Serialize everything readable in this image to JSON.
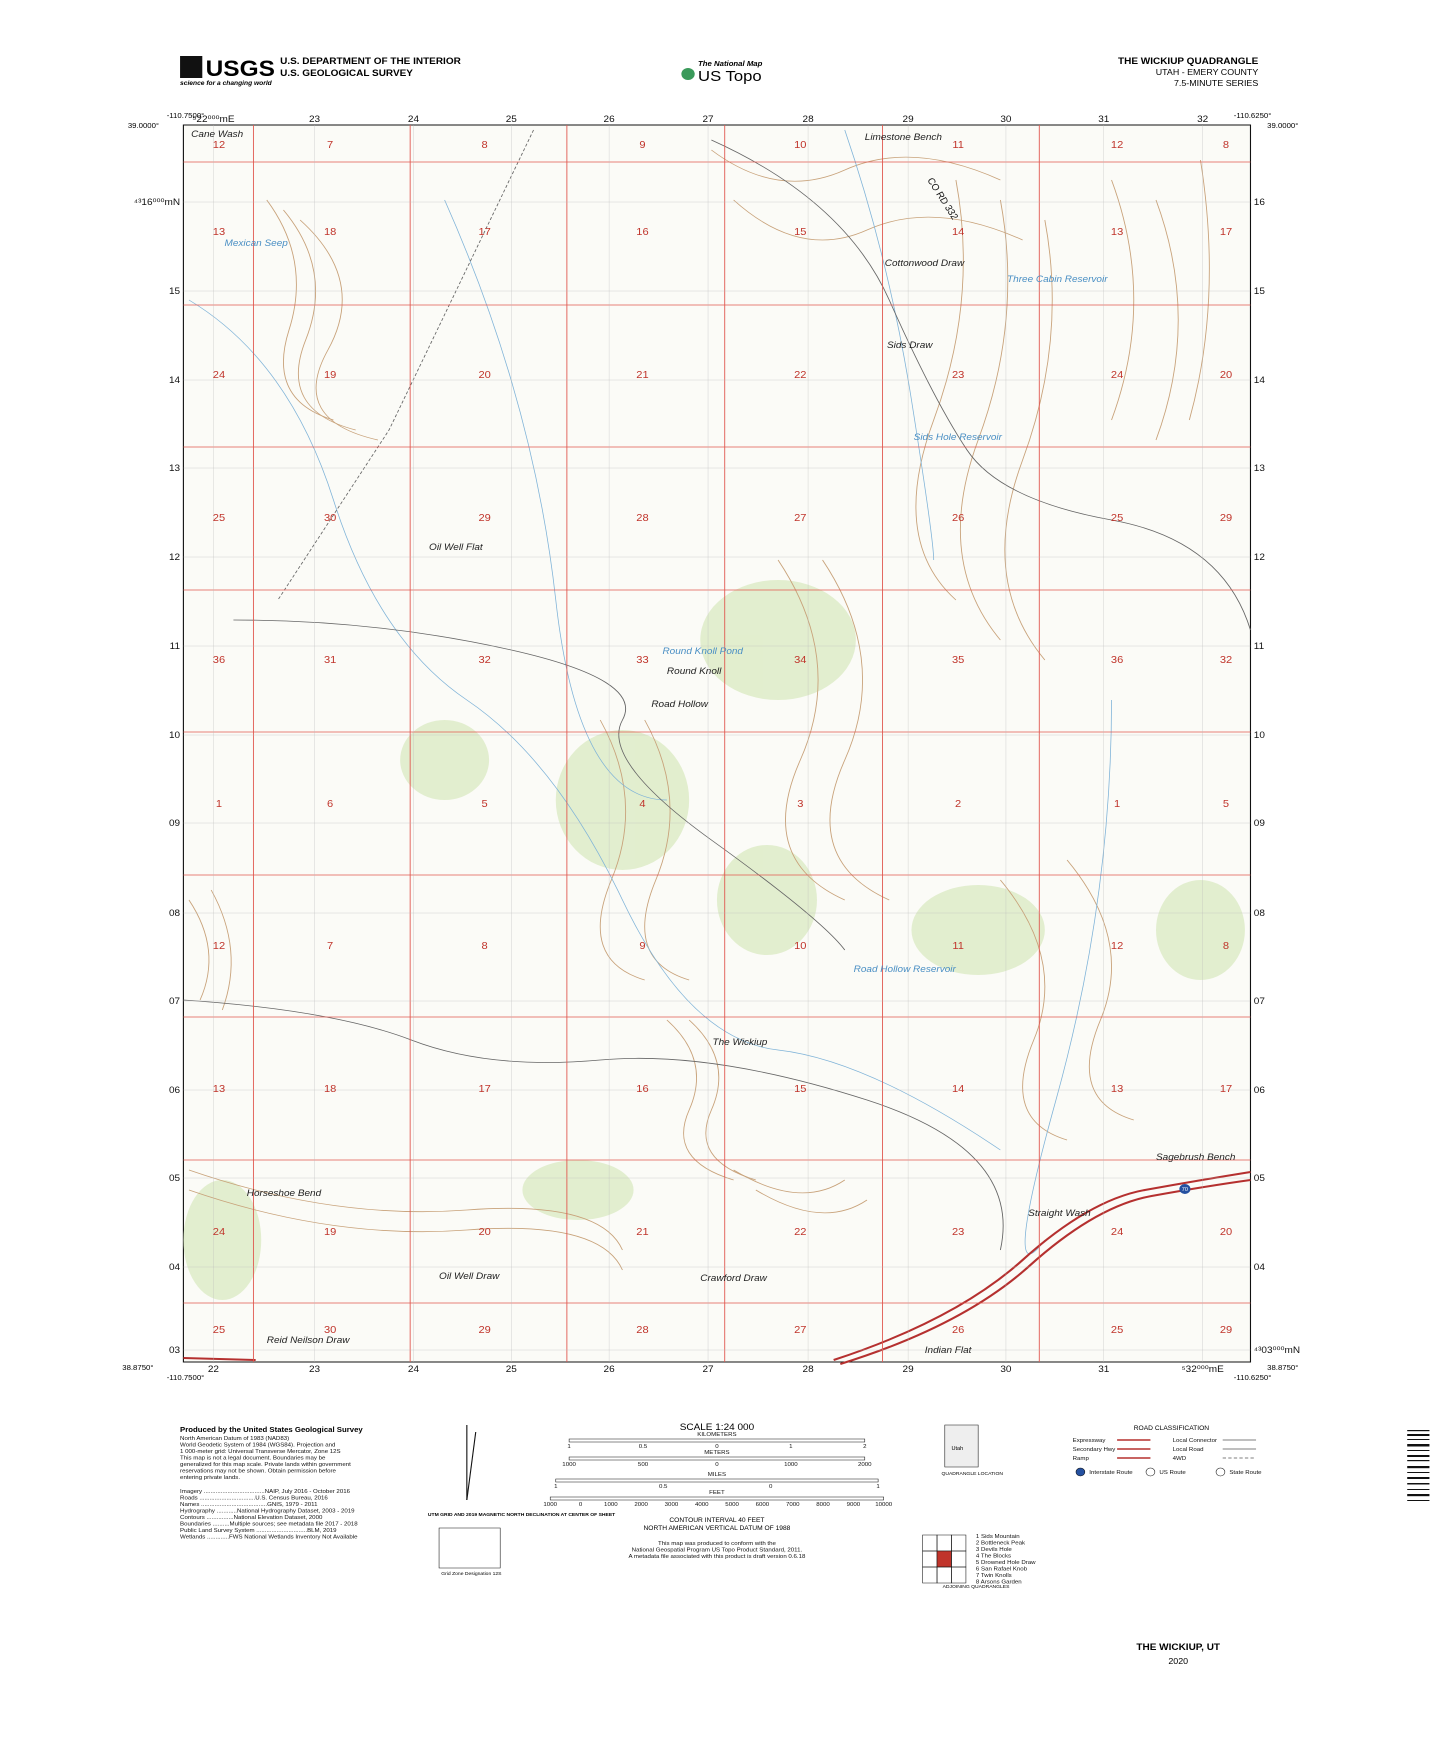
{
  "header": {
    "usgs_logo": "USGS",
    "usgs_tagline": "science for a changing world",
    "dept": "U.S. DEPARTMENT OF THE INTERIOR",
    "survey": "U.S. GEOLOGICAL SURVEY",
    "national_map": "The National Map",
    "us_topo": "US Topo",
    "quad_title": "THE WICKIUP QUADRANGLE",
    "state_county": "UTAH - EMERY COUNTY",
    "series": "7.5-MINUTE SERIES"
  },
  "collar": {
    "nw_lon": "-110.7500°",
    "nw_lat": "39.0000°",
    "ne_lon": "-110.6250°",
    "ne_lat": "39.0000°",
    "sw_lon": "-110.7500°",
    "sw_lat": "38.8750°",
    "se_lon": "-110.6250°",
    "se_lat": "38.8750°"
  },
  "grid": {
    "top_eastings": [
      "⁵22⁰⁰⁰mE",
      "23",
      "24",
      "25",
      "26",
      "27",
      "28",
      "29",
      "30",
      "31",
      "32"
    ],
    "bottom_eastings": [
      "22",
      "23",
      "24",
      "25",
      "26",
      "27",
      "28",
      "29",
      "30",
      "31",
      "⁵32⁰⁰⁰mE"
    ],
    "left_northings": [
      "⁴³16⁰⁰⁰mN",
      "15",
      "14",
      "13",
      "12",
      "11",
      "10",
      "09",
      "08",
      "07",
      "06",
      "05",
      "04",
      "03"
    ],
    "right_northings": [
      "16",
      "15",
      "14",
      "13",
      "12",
      "11",
      "10",
      "09",
      "08",
      "07",
      "06",
      "05",
      "04",
      "⁴³03⁰⁰⁰mN"
    ]
  },
  "sections": {
    "rows": [
      [
        12,
        7,
        8,
        9,
        10,
        11,
        12,
        8
      ],
      [
        13,
        18,
        17,
        16,
        15,
        14,
        13,
        17
      ],
      [
        24,
        19,
        20,
        21,
        22,
        23,
        24,
        20
      ],
      [
        25,
        30,
        29,
        28,
        27,
        26,
        25,
        29
      ],
      [
        36,
        31,
        32,
        33,
        34,
        35,
        36,
        32
      ],
      [
        1,
        6,
        5,
        4,
        3,
        2,
        1,
        5
      ],
      [
        12,
        7,
        8,
        9,
        10,
        11,
        12,
        8
      ],
      [
        13,
        18,
        17,
        16,
        15,
        14,
        13,
        17
      ],
      [
        24,
        19,
        20,
        21,
        22,
        23,
        24,
        20
      ],
      [
        25,
        30,
        29,
        28,
        27,
        26,
        25,
        29
      ]
    ]
  },
  "places": {
    "cane_wash": "Cane Wash",
    "mexican_seep": "Mexican Seep",
    "limestone_bench": "Limestone Bench",
    "cottonwood_draw": "Cottonwood Draw",
    "three_cabin_reservoir": "Three Cabin Reservoir",
    "sids_draw": "Sids Draw",
    "sids_hole_reservoir": "Sids Hole Reservoir",
    "oil_well_flat": "Oil Well Flat",
    "round_knoll_pond": "Round Knoll Pond",
    "round_knoll": "Round Knoll",
    "road_hollow": "Road Hollow",
    "road_hollow_reservoir": "Road Hollow Reservoir",
    "the_wickiup": "The Wickiup",
    "sagebrush_bench": "Sagebrush Bench",
    "horseshoe_bend": "Horseshoe Bend",
    "straight_wash": "Straight Wash",
    "crawford_draw": "Crawford Draw",
    "oil_well_draw": "Oil Well Draw",
    "reid_neilson_draw": "Reid Neilson Draw",
    "indian_flat": "Indian Flat",
    "co_rd_332": "CO RD 332",
    "interstate": "70"
  },
  "footer": {
    "produced": "Produced by the United States Geological Survey",
    "datum_lines": [
      "North American Datum of 1983 (NAD83)",
      "World Geodetic System of 1984 (WGS84). Projection and",
      "1 000-meter grid: Universal Transverse Mercator, Zone 12S",
      "This map is not a legal document. Boundaries may be",
      "generalized for this map scale. Private lands within government",
      "reservations may not be shown. Obtain permission before",
      "entering private lands."
    ],
    "sources": [
      "Imagery ....................................NAIP, July 2016 - October 2016",
      "Roads .................................U.S. Census Bureau, 2016",
      "Names .......................................GNIS, 1979 - 2011",
      "Hydrography ............National Hydrography Dataset, 2003 - 2019",
      "Contours ................National Elevation Dataset, 2000",
      "Boundaries ..........Multiple sources; see metadata file 2017 - 2018",
      "Public Land Survey System ..............................BLM, 2019",
      "Wetlands .............FWS National Wetlands Inventory Not Available"
    ],
    "declination": "UTM GRID AND 2019 MAGNETIC NORTH DECLINATION AT CENTER OF SHEET",
    "grid_zone": "Grid Zone Designation 12S",
    "scale": "SCALE 1:24 000",
    "km_label": "KILOMETERS",
    "km_ticks": [
      "1",
      "0.5",
      "0",
      "1",
      "2"
    ],
    "m_label": "METERS",
    "m_ticks": [
      "1000",
      "500",
      "0",
      "1000",
      "2000"
    ],
    "mi_label": "MILES",
    "mi_ticks": [
      "1",
      "0.5",
      "0",
      "1"
    ],
    "ft_label": "FEET",
    "ft_ticks": [
      "1000",
      "0",
      "1000",
      "2000",
      "3000",
      "4000",
      "5000",
      "6000",
      "7000",
      "8000",
      "9000",
      "10000"
    ],
    "contour": "CONTOUR INTERVAL 40 FEET",
    "vdatum": "NORTH AMERICAN VERTICAL DATUM OF 1988",
    "standard": [
      "This map was produced to conform with the",
      "National Geospatial Program US Topo Product Standard, 2011.",
      "A metadata file associated with this product is draft version 0.6.18"
    ],
    "state": "Utah",
    "quad_location": "QUADRANGLE LOCATION",
    "road_class": "ROAD CLASSIFICATION",
    "roads_left": [
      "Expressway",
      "Secondary Hwy",
      "Ramp"
    ],
    "roads_right": [
      "Local Connector",
      "Local Road",
      "4WD"
    ],
    "route_types": [
      "Interstate Route",
      "US Route",
      "State Route"
    ],
    "adjoining_label": "ADJOINING QUADRANGLES",
    "adjoining": [
      "1 Sids Mountain",
      "2 Bottleneck Peak",
      "3 Devils Hole",
      "4 The Blocks",
      "5 Drowned Hole Draw",
      "6 San Rafael Knob",
      "7 Twin Knolls",
      "8 Arsons Garden"
    ],
    "sheet_name": "THE WICKIUP, UT",
    "year": "2020"
  }
}
